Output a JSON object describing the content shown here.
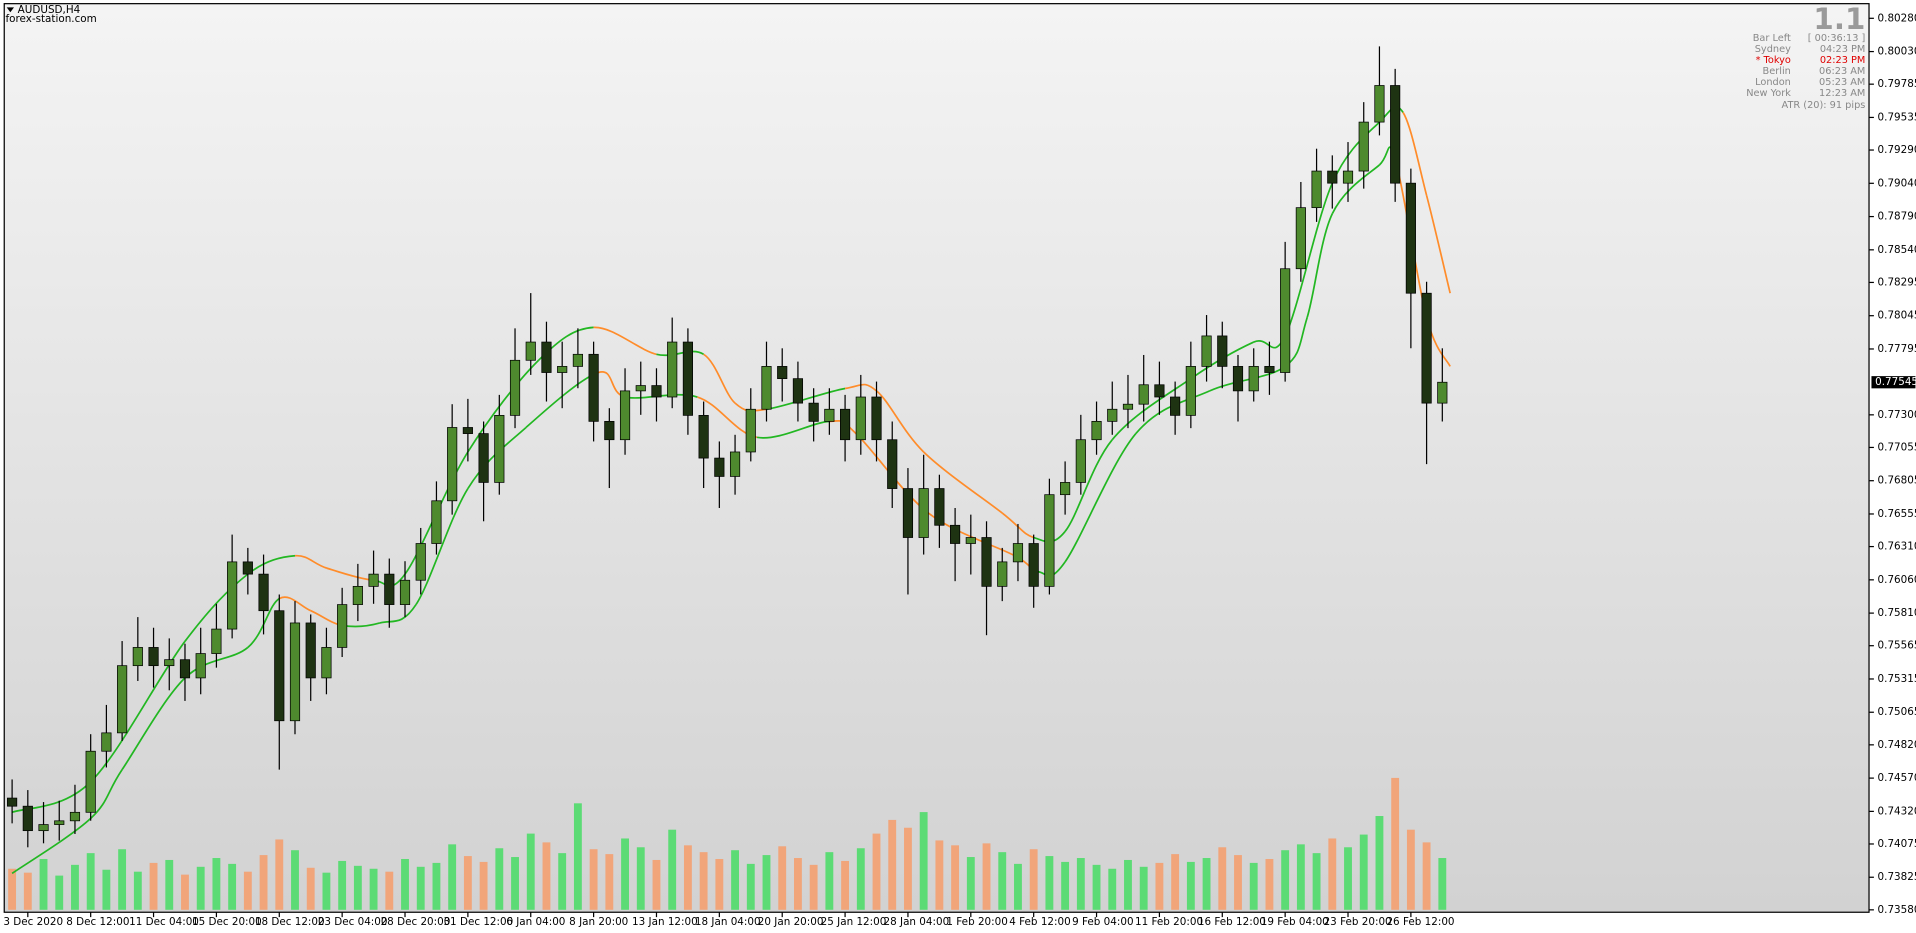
{
  "chart_data": {
    "type": "candlestick",
    "title": "AUDUSD,H4",
    "subtitle": "forex-station.com",
    "open": [
      0.7442,
      0.74359,
      0.74175,
      0.74221,
      0.74249,
      0.74313,
      0.74772,
      0.7491,
      0.75415,
      0.75552,
      0.75415,
      0.7546,
      0.75323,
      0.75506,
      0.7569,
      0.76195,
      0.76103,
      0.75828,
      0.75001,
      0.75736,
      0.75323,
      0.75552,
      0.75874,
      0.76011,
      0.76103,
      0.75874,
      0.76057,
      0.76333,
      0.76654,
      0.77205,
      0.77159,
      0.76792,
      0.77296,
      0.7771,
      0.77847,
      0.77618,
      0.77664,
      0.77755,
      0.77251,
      0.77113,
      0.7748,
      0.7752,
      0.77434,
      0.77847,
      0.77296,
      0.76975,
      0.76837,
      0.77021,
      0.77342,
      0.77664,
      0.77572,
      0.77388,
      0.77251,
      0.77342,
      0.77113,
      0.77434,
      0.77113,
      0.76746,
      0.76378,
      0.76746,
      0.7647,
      0.76333,
      0.76378,
      0.76011,
      0.76195,
      0.76333,
      0.76011,
      0.767,
      0.76792,
      0.77113,
      0.77251,
      0.77342,
      0.7738,
      0.77526,
      0.77434,
      0.77296,
      0.77664,
      0.77893,
      0.77664,
      0.7748,
      0.77664,
      0.77618,
      0.78398,
      0.78857,
      0.79132,
      0.79041,
      0.79132,
      0.795,
      0.79775,
      0.79041,
      0.78214,
      0.77388
    ],
    "high": [
      0.7456,
      0.7448,
      0.7439,
      0.744,
      0.7452,
      0.749,
      0.7512,
      0.756,
      0.7578,
      0.757,
      0.7562,
      0.7558,
      0.757,
      0.7588,
      0.764,
      0.763,
      0.7625,
      0.7595,
      0.759,
      0.758,
      0.757,
      0.76,
      0.7618,
      0.7628,
      0.7622,
      0.762,
      0.7645,
      0.768,
      0.7738,
      0.7742,
      0.7725,
      0.7745,
      0.7795,
      0.78215,
      0.78,
      0.7785,
      0.7795,
      0.7785,
      0.7735,
      0.7765,
      0.777,
      0.7765,
      0.78031,
      0.7795,
      0.774,
      0.771,
      0.7715,
      0.775,
      0.7785,
      0.778,
      0.777,
      0.775,
      0.775,
      0.7745,
      0.776,
      0.7755,
      0.7725,
      0.769,
      0.77,
      0.7685,
      0.766,
      0.7655,
      0.765,
      0.763,
      0.7648,
      0.764,
      0.7682,
      0.7695,
      0.773,
      0.774,
      0.7755,
      0.776,
      0.7775,
      0.777,
      0.7755,
      0.7785,
      0.7805,
      0.78,
      0.7775,
      0.778,
      0.7785,
      0.786,
      0.7905,
      0.793,
      0.7925,
      0.7935,
      0.7965,
      0.80069,
      0.799,
      0.7915,
      0.783,
      0.778
    ],
    "low": [
      0.7423,
      0.7405,
      0.7408,
      0.741,
      0.7415,
      0.7425,
      0.7465,
      0.7485,
      0.753,
      0.7525,
      0.7523,
      0.7515,
      0.752,
      0.754,
      0.7562,
      0.7595,
      0.7565,
      0.74634,
      0.749,
      0.7515,
      0.752,
      0.7548,
      0.7575,
      0.7588,
      0.757,
      0.7578,
      0.7595,
      0.7625,
      0.7655,
      0.7695,
      0.765,
      0.767,
      0.772,
      0.776,
      0.774,
      0.7735,
      0.775,
      0.771,
      0.7675,
      0.77,
      0.773,
      0.7725,
      0.7735,
      0.7715,
      0.7675,
      0.766,
      0.767,
      0.7695,
      0.7725,
      0.774,
      0.7725,
      0.771,
      0.7715,
      0.7695,
      0.77,
      0.7695,
      0.766,
      0.7595,
      0.7625,
      0.763,
      0.7605,
      0.761,
      0.75644,
      0.759,
      0.7605,
      0.7585,
      0.7595,
      0.7655,
      0.767,
      0.77,
      0.7715,
      0.772,
      0.7725,
      0.773,
      0.7715,
      0.772,
      0.7755,
      0.775,
      0.7725,
      0.774,
      0.7745,
      0.7755,
      0.783,
      0.7875,
      0.7885,
      0.789,
      0.79,
      0.794,
      0.789,
      0.778,
      0.7693,
      0.7725
    ],
    "close": [
      0.74359,
      0.74175,
      0.74221,
      0.74249,
      0.74313,
      0.74772,
      0.7491,
      0.75415,
      0.75552,
      0.75415,
      0.7546,
      0.75323,
      0.75506,
      0.7569,
      0.76195,
      0.76103,
      0.75828,
      0.75001,
      0.75736,
      0.75323,
      0.75552,
      0.75874,
      0.76011,
      0.76103,
      0.75874,
      0.76057,
      0.76333,
      0.76654,
      0.77205,
      0.77159,
      0.76792,
      0.77296,
      0.7771,
      0.77847,
      0.77618,
      0.77664,
      0.77755,
      0.77251,
      0.77113,
      0.7748,
      0.7752,
      0.77434,
      0.77847,
      0.77296,
      0.76975,
      0.76837,
      0.77021,
      0.77342,
      0.77664,
      0.77572,
      0.77388,
      0.77251,
      0.77342,
      0.77113,
      0.77434,
      0.77113,
      0.76746,
      0.76378,
      0.76746,
      0.7647,
      0.76333,
      0.76378,
      0.76011,
      0.76195,
      0.76333,
      0.76011,
      0.767,
      0.76792,
      0.77113,
      0.77251,
      0.77342,
      0.7738,
      0.77526,
      0.77434,
      0.77296,
      0.77664,
      0.77893,
      0.77664,
      0.7748,
      0.77664,
      0.77618,
      0.78398,
      0.78857,
      0.79132,
      0.79041,
      0.79132,
      0.795,
      0.79775,
      0.79041,
      0.78214,
      0.77388,
      0.77545
    ],
    "volume": [
      4200,
      3800,
      5200,
      3500,
      4600,
      5800,
      4100,
      6200,
      3900,
      4800,
      5100,
      3600,
      4400,
      5300,
      4700,
      3900,
      5600,
      7200,
      6100,
      4300,
      3800,
      5000,
      4500,
      4200,
      3900,
      5200,
      4400,
      4800,
      6700,
      5500,
      4900,
      6300,
      5400,
      7800,
      6900,
      5800,
      10900,
      6200,
      5700,
      7300,
      6400,
      5100,
      8200,
      6600,
      5900,
      5200,
      6100,
      4700,
      5600,
      6500,
      5300,
      4600,
      5900,
      5000,
      6300,
      7800,
      9200,
      8400,
      10000,
      7100,
      6600,
      5400,
      6800,
      5900,
      4700,
      6200,
      5500,
      4900,
      5300,
      4600,
      4200,
      5100,
      4400,
      4800,
      5700,
      4900,
      5300,
      6400,
      5600,
      4800,
      5200,
      6100,
      6700,
      5800,
      7300,
      6400,
      7700,
      9600,
      13500,
      8200,
      6900,
      5300
    ],
    "volume_ylim": [
      0,
      20000
    ],
    "series": [
      {
        "x": [
          0,
          5,
          11,
          15,
          18,
          20,
          23,
          25,
          29,
          33.5,
          37,
          41,
          44,
          46,
          48,
          53,
          55,
          58,
          63,
          65,
          67,
          70,
          75,
          79,
          81,
          84,
          87,
          88.5,
          90,
          91.5
        ],
        "values": [
          0.74313,
          0.74542,
          0.75598,
          0.76103,
          0.76241,
          0.76149,
          0.76057,
          0.76103,
          0.77021,
          0.7771,
          0.77957,
          0.77755,
          0.77755,
          0.77388,
          0.77342,
          0.77498,
          0.7748,
          0.77021,
          0.76562,
          0.76378,
          0.76424,
          0.77113,
          0.77572,
          0.77847,
          0.77893,
          0.79041,
          0.795,
          0.79573,
          0.78949,
          0.78214
        ]
      },
      {
        "x": [
          0,
          5,
          7,
          11,
          15,
          17,
          19,
          21,
          23.4,
          25.7,
          29,
          32.7,
          37.3,
          39,
          43.6,
          47.4,
          52,
          53.7,
          58.3,
          63.8,
          65.3,
          67,
          71.5,
          76.2,
          81,
          82.4,
          84,
          87,
          88,
          90,
          91.5
        ],
        "values": [
          0.73854,
          0.74267,
          0.74634,
          0.75323,
          0.75552,
          0.75919,
          0.75828,
          0.75718,
          0.75736,
          0.75874,
          0.76746,
          0.77205,
          0.77618,
          0.77434,
          0.77434,
          0.77131,
          0.77251,
          0.77159,
          0.76562,
          0.76241,
          0.76121,
          0.76195,
          0.77159,
          0.7748,
          0.77664,
          0.78031,
          0.78811,
          0.79178,
          0.79224,
          0.78031,
          0.77664
        ]
      }
    ],
    "ma_color": "#22b722",
    "ma_down_color": "#ff8c2a",
    "up_color": "#4e8a2e",
    "down_color": "#1e3312",
    "wick_color": "#000000",
    "volume_up_color": "#4fdc6a",
    "volume_down_color": "#f4a070",
    "ylim": [
      0.73562,
      0.8039
    ],
    "yticks": [
      {
        "value": 0.8028,
        "label": "0.80280"
      },
      {
        "value": 0.8003,
        "label": "0.80030"
      },
      0.79785,
      0.79535,
      {
        "value": 0.7929,
        "label": "0.79290"
      },
      {
        "value": 0.7904,
        "label": "0.79040"
      },
      {
        "value": 0.7879,
        "label": "0.78790"
      },
      {
        "value": 0.7854,
        "label": "0.78540"
      },
      0.78295,
      0.78045,
      0.77795,
      {
        "value": 0.773,
        "label": "0.77300"
      },
      0.77055,
      0.76805,
      0.76555,
      {
        "value": 0.7631,
        "label": "0.76310"
      },
      {
        "value": 0.7606,
        "label": "0.76060"
      },
      {
        "value": 0.7581,
        "label": "0.75810"
      },
      0.75565,
      0.75315,
      0.75065,
      {
        "value": 0.7482,
        "label": "0.74820"
      },
      {
        "value": 0.7457,
        "label": "0.74570"
      },
      {
        "value": 0.7432,
        "label": "0.74320"
      },
      0.74075,
      0.73825,
      {
        "value": 0.7358,
        "label": "0.73580"
      }
    ],
    "xlim": [
      -0.5,
      118.15
    ],
    "xticks": [
      {
        "value": 1,
        "label": "3 Dec 2020"
      },
      {
        "value": 5,
        "label": "8 Dec 12:00"
      },
      {
        "value": 9,
        "label": "11 Dec 04:00"
      },
      {
        "value": 13,
        "label": "15 Dec 20:00"
      },
      {
        "value": 17,
        "label": "18 Dec 12:00"
      },
      {
        "value": 21,
        "label": "23 Dec 04:00"
      },
      {
        "value": 25,
        "label": "28 Dec 20:00"
      },
      {
        "value": 29,
        "label": "31 Dec 12:00"
      },
      {
        "value": 33,
        "label": "6 Jan 04:00"
      },
      {
        "value": 37,
        "label": "8 Jan 20:00"
      },
      {
        "value": 41,
        "label": "13 Jan 12:00"
      },
      {
        "value": 45,
        "label": "18 Jan 04:00"
      },
      {
        "value": 49,
        "label": "20 Jan 20:00"
      },
      {
        "value": 53,
        "label": "25 Jan 12:00"
      },
      {
        "value": 57,
        "label": "28 Jan 04:00"
      },
      {
        "value": 61,
        "label": "1 Feb 20:00"
      },
      {
        "value": 65,
        "label": "4 Feb 12:00"
      },
      {
        "value": 69,
        "label": "9 Feb 04:00"
      },
      {
        "value": 73,
        "label": "11 Feb 20:00"
      },
      {
        "value": 77,
        "label": "16 Feb 12:00"
      },
      {
        "value": 81,
        "label": "19 Feb 04:00"
      },
      {
        "value": 85,
        "label": "23 Feb 20:00"
      },
      {
        "value": 89,
        "label": "26 Feb 12:00"
      }
    ],
    "grid": false,
    "last_price": 0.77545,
    "info_panel": {
      "version": "1.1",
      "rows": [
        [
          "Bar Left",
          "[ 00:36:13 ]"
        ],
        [
          "Sydney",
          "04:23 PM"
        ],
        [
          "* Tokyo",
          "02:23 PM"
        ],
        [
          "Berlin",
          "06:23 AM"
        ],
        [
          "London",
          "05:23 AM"
        ],
        [
          "New York",
          "12:23 AM"
        ]
      ],
      "highlight_row": 2,
      "highlight_color": "#e00000",
      "footer": "ATR (20): 91 pips"
    }
  }
}
